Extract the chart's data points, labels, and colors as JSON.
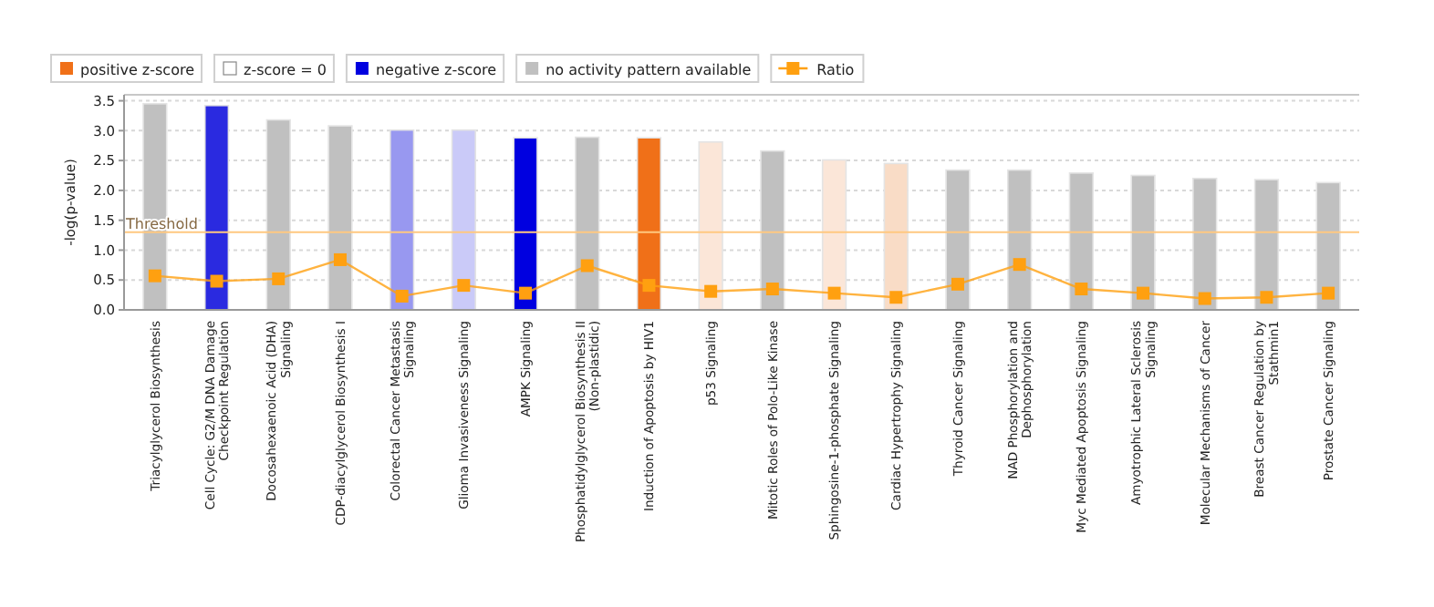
{
  "chart_data": {
    "type": "bar",
    "ylabel": "-log(p-value)",
    "categories": [
      "Triacylglycerol Biosynthesis",
      "Cell Cycle: G2/M DNA Damage Checkpoint Regulation",
      "Docosahexaenoic Acid (DHA) Signaling",
      "CDP-diacylglycerol Biosynthesis I",
      "Colorectal Cancer Metastasis Signaling",
      "Glioma Invasiveness Signaling",
      "AMPK Signaling",
      "Phosphatidylglycerol Biosynthesis II (Non-plastidic)",
      "Induction of Apoptosis by HIV1",
      "p53 Signaling",
      "Mitotic Roles of Polo-Like Kinase",
      "Sphingosine-1-phosphate Signaling",
      "Cardiac Hypertrophy Signaling",
      "Thyroid Cancer Signaling",
      "NAD Phosphorylation and Dephosphorylation",
      "Myc Mediated Apoptosis Signaling",
      "Amyotrophic Lateral Sclerosis Signaling",
      "Molecular Mechanisms of Cancer",
      "Breast Cancer Regulation by Stathmin1",
      "Prostate Cancer Signaling"
    ],
    "series": [
      {
        "name": "positive z-score",
        "color": "#f07018",
        "values": [
          null,
          null,
          null,
          null,
          null,
          null,
          null,
          null,
          2.88,
          2.81,
          null,
          2.51,
          2.45,
          null,
          null,
          null,
          null,
          null,
          null,
          null
        ],
        "colors": [
          null,
          null,
          null,
          null,
          null,
          null,
          null,
          null,
          "#f07018",
          "#fbe6d8",
          null,
          "#fbe6d8",
          "#f9dcc6",
          null,
          null,
          null,
          null,
          null,
          null,
          null
        ]
      },
      {
        "name": "z-score = 0",
        "color": "#ffffff",
        "values": [
          null,
          null,
          null,
          null,
          null,
          null,
          null,
          null,
          null,
          null,
          null,
          null,
          null,
          null,
          null,
          null,
          null,
          null,
          null,
          null
        ]
      },
      {
        "name": "negative z-score",
        "color": "#0000e0",
        "values": [
          null,
          3.42,
          null,
          null,
          3.01,
          3.01,
          2.88,
          null,
          null,
          null,
          null,
          null,
          null,
          null,
          null,
          null,
          null,
          null,
          null,
          null
        ],
        "colors": [
          null,
          "#2a2ae0",
          null,
          null,
          "#9898f0",
          "#cacaf8",
          "#0000e0",
          null,
          null,
          null,
          null,
          null,
          null,
          null,
          null,
          null,
          null,
          null,
          null,
          null
        ]
      },
      {
        "name": "no activity pattern available",
        "color": "#c0c0c0",
        "values": [
          3.45,
          null,
          3.18,
          3.08,
          null,
          null,
          null,
          2.89,
          null,
          null,
          2.66,
          null,
          null,
          2.34,
          2.34,
          2.29,
          2.25,
          2.2,
          2.18,
          2.13
        ]
      },
      {
        "name": "Ratio",
        "type": "line",
        "color": "#ffa010",
        "marker": "square",
        "values": [
          0.57,
          0.48,
          0.52,
          0.84,
          0.23,
          0.41,
          0.28,
          0.74,
          0.41,
          0.31,
          0.35,
          0.28,
          0.21,
          0.43,
          0.76,
          0.35,
          0.28,
          0.19,
          0.21,
          0.28
        ]
      }
    ],
    "ylim": [
      0,
      3.6
    ],
    "yticks": [
      {
        "value": 0,
        "label": "0.0"
      },
      {
        "value": 0.5,
        "label": "0.5"
      },
      {
        "value": 1,
        "label": "1.0"
      },
      {
        "value": 1.5,
        "label": "1.5"
      },
      {
        "value": 2,
        "label": "2.0"
      },
      {
        "value": 2.5,
        "label": "2.5"
      },
      {
        "value": 3,
        "label": "3.0"
      },
      {
        "value": 3.5,
        "label": "3.5"
      }
    ],
    "grid": "y",
    "legend": "top left",
    "ref_lines": [
      {
        "axis": "y",
        "value": 1.3,
        "label": "Threshold",
        "color": "#ffc880"
      }
    ]
  }
}
